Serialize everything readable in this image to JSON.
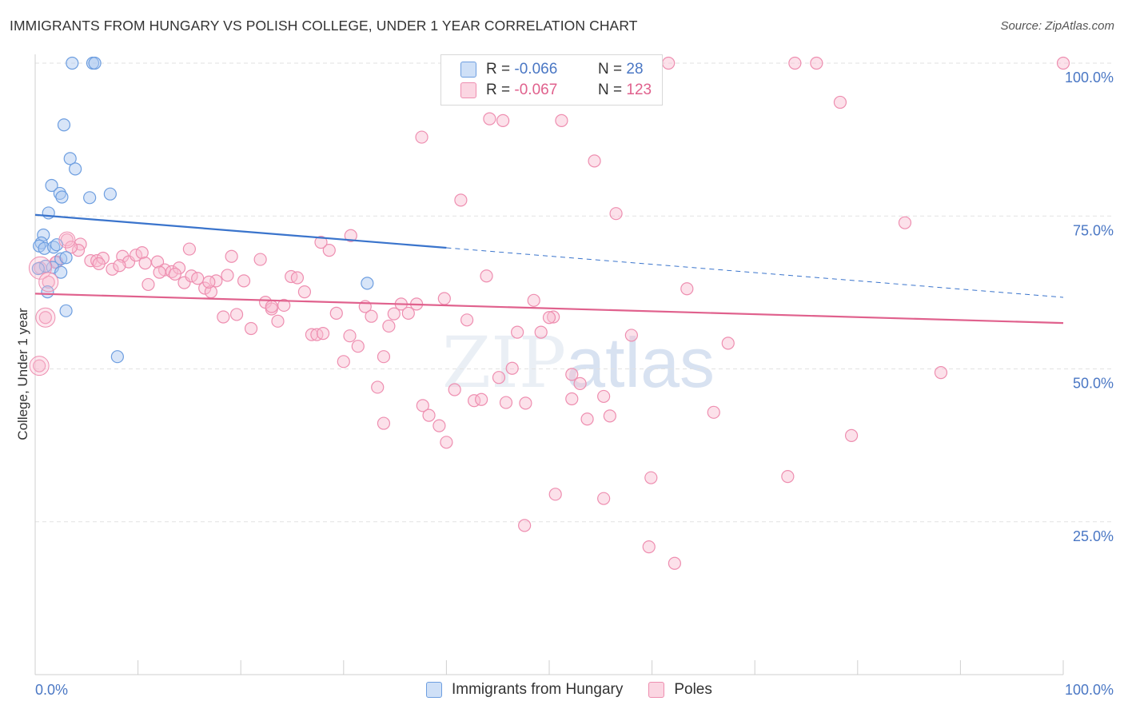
{
  "title": "IMMIGRANTS FROM HUNGARY VS POLISH COLLEGE, UNDER 1 YEAR CORRELATION CHART",
  "source": "Source: ZipAtlas.com",
  "watermark": {
    "zip": "ZIP",
    "atlas": "atlas"
  },
  "legend": {
    "rows": [
      {
        "r_label": "R =",
        "r_value": "-0.066",
        "n_label": "N =",
        "n_value": "28",
        "color": "#a8c6ef",
        "border": "#6d9ee0"
      },
      {
        "r_label": "R =",
        "r_value": "-0.067",
        "n_label": "N =",
        "n_value": "123",
        "color": "#f8bcd0",
        "border": "#ee8eb0"
      }
    ]
  },
  "bottom_legend": [
    {
      "label": "Immigrants from Hungary",
      "color": "#a8c6ef",
      "border": "#6d9ee0"
    },
    {
      "label": "Poles",
      "color": "#f8bcd0",
      "border": "#ee8eb0"
    }
  ],
  "chart_data": {
    "type": "scatter",
    "xlabel": "",
    "ylabel": "College, Under 1 year",
    "xlim": [
      0,
      100
    ],
    "ylim": [
      0,
      100
    ],
    "x_tick_labels": [
      {
        "value": 0,
        "label": "0.0%"
      },
      {
        "value": 100,
        "label": "100.0%"
      }
    ],
    "y_tick_labels": [
      {
        "value": 25,
        "label": "25.0%"
      },
      {
        "value": 50,
        "label": "50.0%"
      },
      {
        "value": 75,
        "label": "75.0%"
      },
      {
        "value": 100,
        "label": "100.0%"
      }
    ],
    "grid": true,
    "series": [
      {
        "name": "Immigrants from Hungary",
        "color": "#6d9ee0",
        "fill": "#a8c6ef",
        "trend": {
          "x0": 0,
          "y0": 75.2,
          "x1": 40,
          "y1": 69.8,
          "dash_to_x": 100,
          "dash_to_y": 61.7,
          "color": "#3a74cc"
        },
        "points": [
          [
            3.6,
            100
          ],
          [
            5.6,
            100
          ],
          [
            5.8,
            100
          ],
          [
            2.8,
            89.9
          ],
          [
            3.4,
            84.4
          ],
          [
            3.9,
            82.7
          ],
          [
            1.6,
            80
          ],
          [
            2.4,
            78.7
          ],
          [
            2.6,
            78.1
          ],
          [
            5.3,
            78
          ],
          [
            7.3,
            78.6
          ],
          [
            1.3,
            75.5
          ],
          [
            0.8,
            71.9
          ],
          [
            0.6,
            70.6
          ],
          [
            0.4,
            70.1
          ],
          [
            0.9,
            69.7
          ],
          [
            1.8,
            69.9
          ],
          [
            2.1,
            70.3
          ],
          [
            2.5,
            68
          ],
          [
            3.0,
            68.2
          ],
          [
            1.7,
            66.6
          ],
          [
            2.5,
            65.8
          ],
          [
            1.0,
            66.8
          ],
          [
            0.3,
            66.4
          ],
          [
            1.2,
            62.6
          ],
          [
            3.0,
            59.5
          ],
          [
            32.3,
            64
          ],
          [
            8.0,
            52
          ]
        ]
      },
      {
        "name": "Poles",
        "color": "#ee8eb0",
        "fill": "#f8bcd0",
        "trend": {
          "x0": 0,
          "y0": 62.3,
          "x1": 100,
          "y1": 57.5,
          "color": "#e0618d"
        },
        "points": [
          [
            0.5,
            66.5
          ],
          [
            1.3,
            64.2
          ],
          [
            1.0,
            58.4
          ],
          [
            0.4,
            50.5
          ],
          [
            3.1,
            71.1
          ],
          [
            4.4,
            70.4
          ],
          [
            2.1,
            67.5
          ],
          [
            4.2,
            69.4
          ],
          [
            5.4,
            67.7
          ],
          [
            6.0,
            67.7
          ],
          [
            6.6,
            68.1
          ],
          [
            7.5,
            66.3
          ],
          [
            8.5,
            68.4
          ],
          [
            9.1,
            67.5
          ],
          [
            9.8,
            68.6
          ],
          [
            10.4,
            69
          ],
          [
            11.0,
            63.8
          ],
          [
            11.9,
            67.5
          ],
          [
            12.6,
            66.2
          ],
          [
            13.3,
            65.9
          ],
          [
            14.0,
            66.5
          ],
          [
            14.5,
            64.1
          ],
          [
            15.2,
            65.2
          ],
          [
            15.8,
            64.8
          ],
          [
            16.5,
            63.2
          ],
          [
            17.1,
            62.6
          ],
          [
            17.6,
            64.4
          ],
          [
            18.3,
            58.5
          ],
          [
            19.1,
            68.4
          ],
          [
            19.6,
            58.9
          ],
          [
            20.3,
            64.4
          ],
          [
            21.0,
            56.6
          ],
          [
            21.9,
            67.9
          ],
          [
            22.4,
            60.9
          ],
          [
            23.0,
            59.8
          ],
          [
            23.6,
            57.8
          ],
          [
            24.2,
            60.4
          ],
          [
            24.9,
            65.1
          ],
          [
            25.5,
            64.9
          ],
          [
            26.2,
            62.6
          ],
          [
            26.9,
            55.6
          ],
          [
            27.4,
            55.6
          ],
          [
            28.0,
            55.8
          ],
          [
            28.6,
            69.4
          ],
          [
            29.3,
            59.1
          ],
          [
            30.0,
            51.2
          ],
          [
            30.6,
            55.4
          ],
          [
            31.4,
            53.7
          ],
          [
            32.1,
            60.2
          ],
          [
            32.7,
            58.6
          ],
          [
            33.3,
            47
          ],
          [
            33.9,
            52
          ],
          [
            34.4,
            57
          ],
          [
            34.9,
            59
          ],
          [
            35.6,
            60.6
          ],
          [
            36.3,
            59.1
          ],
          [
            37.1,
            60.6
          ],
          [
            37.7,
            44
          ],
          [
            38.3,
            42.4
          ],
          [
            39.3,
            40.7
          ],
          [
            40.0,
            38
          ],
          [
            40.8,
            46.6
          ],
          [
            41.4,
            77.6
          ],
          [
            42.0,
            58
          ],
          [
            42.7,
            44.8
          ],
          [
            43.4,
            45
          ],
          [
            43.9,
            65.2
          ],
          [
            44.2,
            90.9
          ],
          [
            45.1,
            48.6
          ],
          [
            45.8,
            44.5
          ],
          [
            46.4,
            50.1
          ],
          [
            46.9,
            56
          ],
          [
            47.7,
            44.4
          ],
          [
            48.5,
            61.2
          ],
          [
            49.2,
            56
          ],
          [
            50.4,
            58.5
          ],
          [
            51.2,
            90.6
          ],
          [
            52.2,
            49.1
          ],
          [
            53.0,
            47.6
          ],
          [
            53.7,
            41.8
          ],
          [
            54.4,
            84
          ],
          [
            55.3,
            45.5
          ],
          [
            55.9,
            42.3
          ],
          [
            56.5,
            75.4
          ],
          [
            58.0,
            55.5
          ],
          [
            59.9,
            32.2
          ],
          [
            61.6,
            100
          ],
          [
            63.4,
            63.1
          ],
          [
            66.0,
            42.9
          ],
          [
            67.4,
            54.2
          ],
          [
            73.2,
            32.4
          ],
          [
            73.9,
            100
          ],
          [
            76.0,
            100
          ],
          [
            78.3,
            93.6
          ],
          [
            79.4,
            39.1
          ],
          [
            84.6,
            73.9
          ],
          [
            88.1,
            49.4
          ],
          [
            100.0,
            100
          ],
          [
            37.6,
            87.9
          ],
          [
            39.8,
            61.5
          ],
          [
            47.6,
            24.4
          ],
          [
            55.3,
            28.8
          ],
          [
            59.7,
            20.9
          ],
          [
            62.2,
            18.2
          ],
          [
            50.6,
            29.5
          ],
          [
            33.9,
            41.1
          ],
          [
            52.2,
            45.1
          ],
          [
            23.0,
            60.2
          ],
          [
            15.0,
            69.6
          ],
          [
            18.7,
            65.3
          ],
          [
            3.5,
            69.9
          ],
          [
            2.0,
            67.4
          ],
          [
            6.2,
            67.2
          ],
          [
            8.2,
            66.9
          ],
          [
            10.7,
            67.3
          ],
          [
            13.6,
            65.5
          ],
          [
            16.9,
            64.2
          ],
          [
            12.1,
            65.8
          ],
          [
            27.8,
            70.7
          ],
          [
            30.7,
            71.8
          ],
          [
            45.5,
            90.6
          ],
          [
            50.0,
            58.4
          ],
          [
            58.7,
            100
          ]
        ]
      }
    ]
  }
}
